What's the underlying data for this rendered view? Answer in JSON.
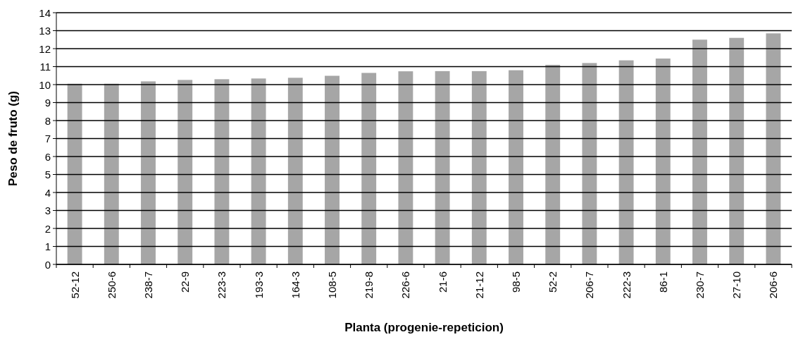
{
  "chart_data": {
    "type": "bar",
    "xlabel": "Planta (progenie-repeticion)",
    "ylabel": "Peso de fruto (g)",
    "categories": [
      "52-12",
      "250-6",
      "238-7",
      "22-9",
      "223-3",
      "193-3",
      "164-3",
      "108-5",
      "219-8",
      "226-6",
      "21-6",
      "21-12",
      "98-5",
      "52-2",
      "206-7",
      "222-3",
      "86-1",
      "230-7",
      "27-10",
      "206-6"
    ],
    "values": [
      10.05,
      10.05,
      10.18,
      10.26,
      10.3,
      10.34,
      10.38,
      10.49,
      10.65,
      10.74,
      10.75,
      10.75,
      10.8,
      11.1,
      11.2,
      11.35,
      11.45,
      12.5,
      12.6,
      12.85
    ],
    "color": "#a6a6a6",
    "ylim": [
      0,
      14
    ],
    "yticks": [
      0,
      1,
      2,
      3,
      4,
      5,
      6,
      7,
      8,
      9,
      10,
      11,
      12,
      13,
      14
    ],
    "grid": "y"
  }
}
